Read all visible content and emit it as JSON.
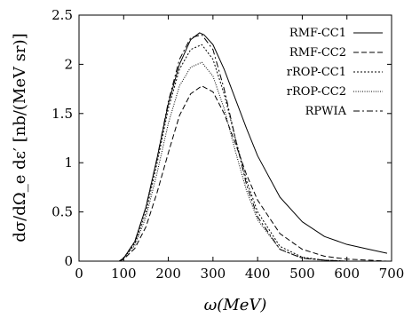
{
  "chart_data": {
    "type": "line",
    "title": "",
    "xlabel": "ω(MeV)",
    "ylabel": "dσ/dΩ_e dε′ [nb/(MeV sr)]",
    "xlim": [
      0,
      700
    ],
    "ylim": [
      0,
      2.5
    ],
    "x_ticks": [
      "0",
      "100",
      "200",
      "300",
      "400",
      "500",
      "600",
      "700"
    ],
    "y_ticks": [
      "0",
      "0.5",
      "1",
      "1.5",
      "2",
      "2.5"
    ],
    "legend_position": "top-right",
    "grid": false,
    "series": [
      {
        "name": "RMF-CC1",
        "dash": "solid",
        "x": [
          90,
          100,
          125,
          150,
          175,
          200,
          225,
          250,
          270,
          280,
          300,
          325,
          350,
          375,
          400,
          450,
          500,
          550,
          600,
          650,
          690
        ],
        "y": [
          0.0,
          0.03,
          0.2,
          0.55,
          1.05,
          1.6,
          2.0,
          2.25,
          2.32,
          2.3,
          2.2,
          1.95,
          1.65,
          1.35,
          1.07,
          0.65,
          0.4,
          0.25,
          0.17,
          0.12,
          0.08
        ]
      },
      {
        "name": "RMF-CC2",
        "dash": "dashed",
        "x": [
          90,
          100,
          125,
          150,
          175,
          200,
          225,
          250,
          275,
          300,
          325,
          350,
          375,
          400,
          450,
          500,
          550,
          600,
          650,
          690
        ],
        "y": [
          0.0,
          0.02,
          0.13,
          0.35,
          0.7,
          1.1,
          1.48,
          1.7,
          1.78,
          1.72,
          1.5,
          1.2,
          0.88,
          0.62,
          0.28,
          0.12,
          0.05,
          0.02,
          0.01,
          0.0
        ]
      },
      {
        "name": "rROP-CC1",
        "dash": "dotted",
        "x": [
          90,
          100,
          125,
          150,
          175,
          200,
          225,
          250,
          275,
          300,
          325,
          350,
          375,
          400,
          450,
          500,
          550,
          600
        ],
        "y": [
          0.0,
          0.03,
          0.18,
          0.5,
          1.0,
          1.55,
          1.95,
          2.15,
          2.2,
          2.05,
          1.7,
          1.25,
          0.82,
          0.5,
          0.15,
          0.04,
          0.01,
          0.0
        ]
      },
      {
        "name": "rROP-CC2",
        "dash": "dense-dotted",
        "x": [
          90,
          100,
          125,
          150,
          175,
          200,
          225,
          250,
          275,
          300,
          325,
          350,
          375,
          400,
          450,
          500,
          550,
          600
        ],
        "y": [
          0.0,
          0.03,
          0.16,
          0.45,
          0.9,
          1.4,
          1.78,
          1.97,
          2.02,
          1.88,
          1.55,
          1.12,
          0.72,
          0.42,
          0.12,
          0.03,
          0.01,
          0.0
        ]
      },
      {
        "name": "RPWIA",
        "dash": "dash-dot",
        "x": [
          90,
          100,
          125,
          150,
          175,
          200,
          225,
          250,
          275,
          300,
          325,
          350,
          375,
          400,
          450,
          500,
          550,
          600
        ],
        "y": [
          0.0,
          0.03,
          0.2,
          0.55,
          1.05,
          1.62,
          2.05,
          2.27,
          2.3,
          2.15,
          1.75,
          1.25,
          0.78,
          0.45,
          0.12,
          0.03,
          0.01,
          0.0
        ]
      }
    ]
  }
}
